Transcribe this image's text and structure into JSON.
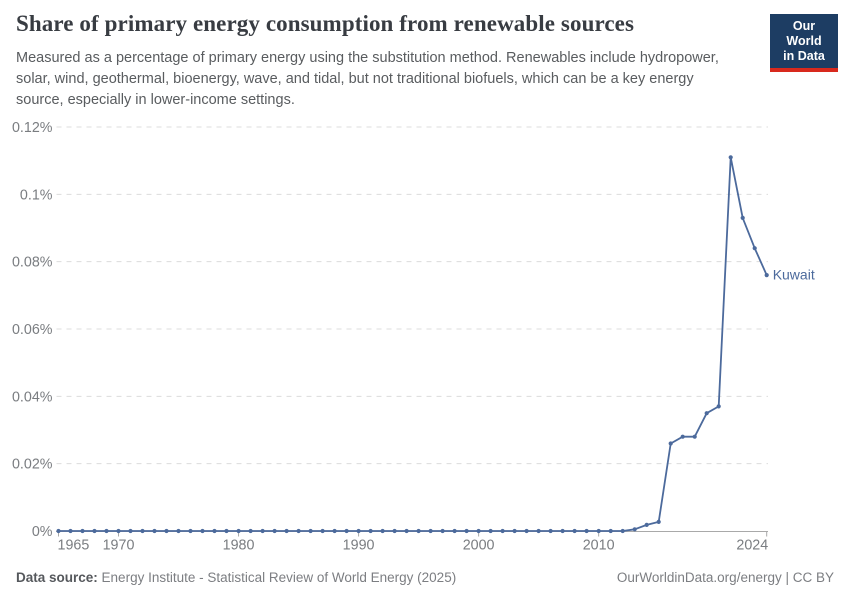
{
  "header": {
    "subtitle_lines": [
      "Measured as a percentage of primary energy using the substitution method. Renewables include hydropower,",
      "solar, wind, geothermal, bioenergy, wave, and tidal, but not traditional biofuels, which can be a key energy",
      "source, especially in lower-income settings."
    ]
  },
  "logo": {
    "line1": "Our World",
    "line2": "in Data",
    "bg_color": "#1d3d63",
    "accent_color": "#d8291d"
  },
  "chart_data": {
    "type": "line",
    "title": "Share of primary energy consumption from renewable sources",
    "subtitle": "Measured as a percentage of primary energy using the substitution method. Renewables include hydropower, solar, wind, geothermal, bioenergy, wave, and tidal, but not traditional biofuels, which can be a key energy source, especially in lower-income settings.",
    "entity": "Kuwait",
    "xlabel": "",
    "ylabel": "",
    "xlim": [
      1965,
      2024
    ],
    "ylim": [
      0,
      0.12
    ],
    "grid": true,
    "legend_position": "end-of-line label",
    "line_color": "#4c6a9c",
    "years": [
      1965,
      1966,
      1967,
      1968,
      1969,
      1970,
      1971,
      1972,
      1973,
      1974,
      1975,
      1976,
      1977,
      1978,
      1979,
      1980,
      1981,
      1982,
      1983,
      1984,
      1985,
      1986,
      1987,
      1988,
      1989,
      1990,
      1991,
      1992,
      1993,
      1994,
      1995,
      1996,
      1997,
      1998,
      1999,
      2000,
      2001,
      2002,
      2003,
      2004,
      2005,
      2006,
      2007,
      2008,
      2009,
      2010,
      2011,
      2012,
      2013,
      2014,
      2015,
      2016,
      2017,
      2018,
      2019,
      2020,
      2021,
      2022,
      2023,
      2024
    ],
    "values": [
      0,
      0,
      0,
      0,
      0,
      0,
      0,
      0,
      0,
      0,
      0,
      0,
      0,
      0,
      0,
      0,
      0,
      0,
      0,
      0,
      0,
      0,
      0,
      0,
      0,
      0,
      0,
      0,
      0,
      0,
      0,
      0,
      0,
      0,
      0,
      0,
      0,
      0,
      0,
      0,
      0,
      0,
      0,
      0,
      0,
      0,
      0,
      0,
      0.0005,
      0.0018,
      0.0027,
      0.026,
      0.028,
      0.028,
      0.035,
      0.037,
      0.111,
      0.093,
      0.084,
      0.076
    ],
    "y_ticks": [
      {
        "value": 0,
        "label": "0%"
      },
      {
        "value": 0.02,
        "label": "0.02%"
      },
      {
        "value": 0.04,
        "label": "0.04%"
      },
      {
        "value": 0.06,
        "label": "0.06%"
      },
      {
        "value": 0.08,
        "label": "0.08%"
      },
      {
        "value": 0.1,
        "label": "0.1%"
      },
      {
        "value": 0.12,
        "label": "0.12%"
      }
    ],
    "x_ticks": [
      {
        "value": 1965,
        "label": "1965"
      },
      {
        "value": 1970,
        "label": "1970"
      },
      {
        "value": 1980,
        "label": "1980"
      },
      {
        "value": 1990,
        "label": "1990"
      },
      {
        "value": 2000,
        "label": "2000"
      },
      {
        "value": 2010,
        "label": "2010"
      },
      {
        "value": 2024,
        "label": "2024"
      }
    ]
  },
  "footer": {
    "data_source_label": "Data source:",
    "data_source_value": "Energy Institute - Statistical Review of World Energy (2025)",
    "site_credit": "OurWorldinData.org/energy | CC BY"
  }
}
